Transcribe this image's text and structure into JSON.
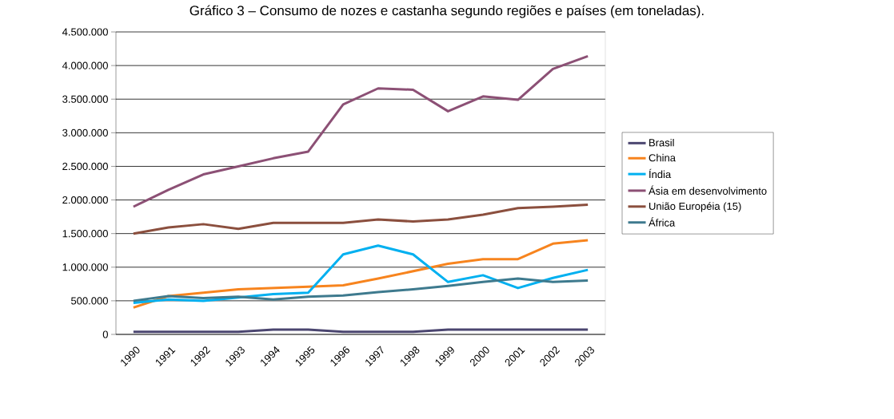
{
  "chart_data": {
    "type": "line",
    "title": "Gráfico 3 – Consumo de nozes e castanha segundo regiões e países (em toneladas).",
    "categories": [
      "1990",
      "1991",
      "1992",
      "1993",
      "1994",
      "1995",
      "1996",
      "1997",
      "1998",
      "1999",
      "2000",
      "2001",
      "2002",
      "2003"
    ],
    "series": [
      {
        "name": "Brasil",
        "color": "#4b4670",
        "values": [
          40000,
          40000,
          40000,
          40000,
          70000,
          70000,
          40000,
          40000,
          40000,
          70000,
          70000,
          70000,
          70000,
          70000
        ]
      },
      {
        "name": "China",
        "color": "#f7841e",
        "values": [
          400000,
          570000,
          620000,
          670000,
          690000,
          710000,
          730000,
          830000,
          940000,
          1050000,
          1120000,
          1120000,
          1350000,
          1400000
        ]
      },
      {
        "name": "Índia",
        "color": "#00b0f0",
        "values": [
          470000,
          520000,
          500000,
          550000,
          600000,
          620000,
          1190000,
          1320000,
          1190000,
          780000,
          880000,
          690000,
          840000,
          960000
        ]
      },
      {
        "name": "Ásia em desenvolvimento",
        "color": "#8c5075",
        "values": [
          1900000,
          2150000,
          2380000,
          2500000,
          2620000,
          2720000,
          3420000,
          3660000,
          3640000,
          3320000,
          3540000,
          3490000,
          3950000,
          4140000
        ]
      },
      {
        "name": "União Européia (15)",
        "color": "#8b4f3e",
        "values": [
          1500000,
          1590000,
          1640000,
          1570000,
          1660000,
          1660000,
          1660000,
          1710000,
          1680000,
          1710000,
          1780000,
          1880000,
          1900000,
          1930000
        ]
      },
      {
        "name": "África",
        "color": "#3e7a8e",
        "values": [
          500000,
          570000,
          540000,
          560000,
          520000,
          560000,
          580000,
          630000,
          670000,
          720000,
          780000,
          830000,
          780000,
          800000
        ]
      }
    ],
    "ylim": [
      0,
      4500000
    ],
    "yticks": [
      0,
      {
        "value": 500000,
        "label": "500.000"
      },
      {
        "value": 1000000,
        "label": "1.000.000"
      },
      {
        "value": 1500000,
        "label": "1.500.000"
      },
      {
        "value": 2000000,
        "label": "2.000.000"
      },
      {
        "value": 2500000,
        "label": "2.500.000"
      },
      {
        "value": 3000000,
        "label": "3.000.000"
      },
      {
        "value": 3500000,
        "label": "3.500.000"
      },
      {
        "value": 4000000,
        "label": "4.000.000"
      },
      {
        "value": 4500000,
        "label": "4.500.000"
      }
    ],
    "grid": "y",
    "legend": "right"
  }
}
